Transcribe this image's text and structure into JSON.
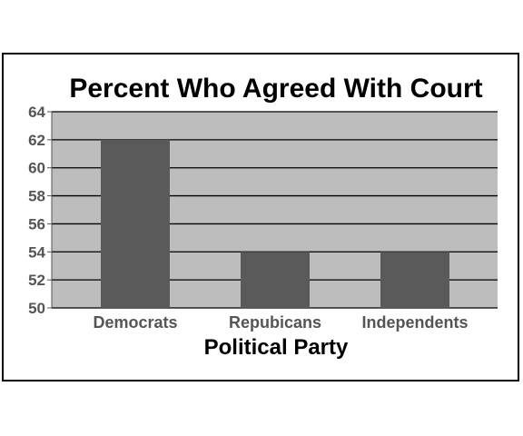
{
  "chart_data": {
    "type": "bar",
    "title": "Percent Who Agreed With Court",
    "xlabel": "Political Party",
    "ylabel": "",
    "categories": [
      "Democrats",
      "Repubicans",
      "Independents"
    ],
    "values": [
      62,
      54,
      54
    ],
    "ylim": [
      50,
      64
    ],
    "yticks": [
      50,
      52,
      54,
      56,
      58,
      60,
      62,
      64
    ],
    "grid": true,
    "colors": {
      "plot_background": "#bdbdbd",
      "bar": "#5a5a5a",
      "gridline": "#000000"
    }
  }
}
